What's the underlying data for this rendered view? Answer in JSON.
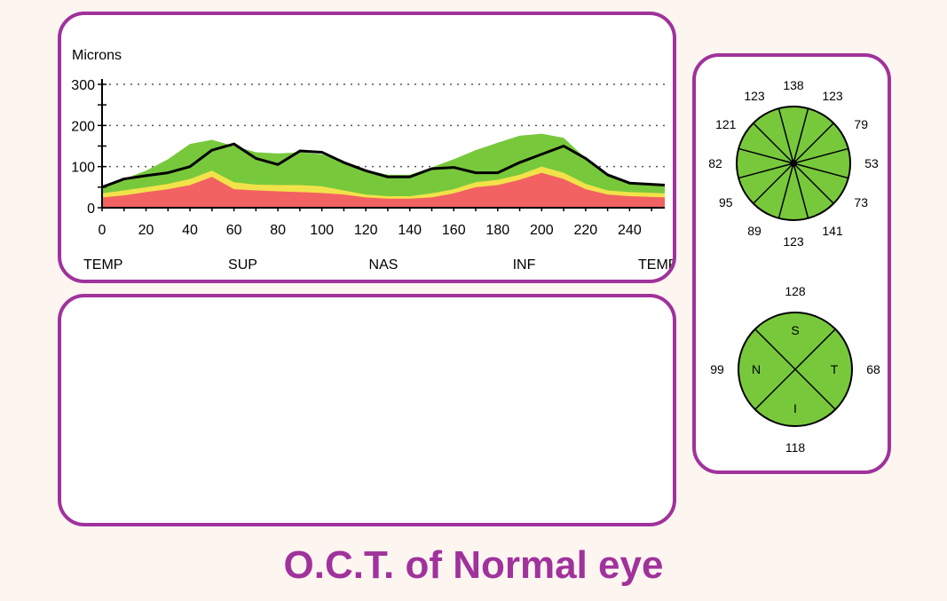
{
  "caption": "O.C.T. of Normal eye",
  "chart_data": [
    {
      "type": "area",
      "ylabel": "Microns",
      "ylim": [
        0,
        300
      ],
      "xlim": [
        0,
        256
      ],
      "yticks": [
        0,
        100,
        200,
        300
      ],
      "xticks": [
        0,
        20,
        40,
        60,
        80,
        100,
        120,
        140,
        160,
        180,
        200,
        220,
        240
      ],
      "region_labels": [
        {
          "label": "TEMP",
          "x": 0
        },
        {
          "label": "SUP",
          "x": 64
        },
        {
          "label": "NAS",
          "x": 128
        },
        {
          "label": "INF",
          "x": 192
        },
        {
          "label": "TEMP",
          "x": 256
        }
      ],
      "grid": "dotted-horizontal",
      "colors": {
        "red": "#f26262",
        "yellow": "#f2e24a",
        "green": "#78c83c",
        "line": "#000000"
      },
      "x": [
        0,
        10,
        20,
        30,
        40,
        50,
        60,
        70,
        80,
        90,
        100,
        110,
        120,
        130,
        140,
        150,
        160,
        170,
        180,
        190,
        200,
        210,
        220,
        230,
        240,
        256
      ],
      "bands": [
        {
          "color": "red",
          "values": [
            25,
            30,
            38,
            45,
            55,
            75,
            45,
            42,
            40,
            38,
            36,
            32,
            25,
            22,
            22,
            25,
            35,
            50,
            55,
            68,
            85,
            70,
            45,
            32,
            28,
            25
          ]
        },
        {
          "color": "yellow",
          "values": [
            35,
            42,
            50,
            58,
            70,
            90,
            62,
            56,
            55,
            55,
            52,
            42,
            32,
            28,
            28,
            35,
            45,
            62,
            68,
            80,
            100,
            85,
            58,
            42,
            38,
            35
          ]
        },
        {
          "color": "green",
          "values": [
            50,
            70,
            90,
            118,
            155,
            165,
            150,
            135,
            132,
            135,
            130,
            112,
            92,
            80,
            80,
            98,
            118,
            140,
            158,
            175,
            180,
            170,
            120,
            78,
            60,
            52
          ]
        }
      ],
      "series": [
        {
          "values": [
            50,
            70,
            78,
            85,
            100,
            140,
            155,
            120,
            105,
            138,
            135,
            110,
            90,
            75,
            75,
            95,
            98,
            85,
            85,
            110,
            130,
            150,
            120,
            80,
            60,
            55
          ]
        }
      ]
    },
    {
      "type": "pie",
      "segments": [
        "clock-hours"
      ],
      "values": [
        138,
        123,
        79,
        53,
        73,
        141,
        123,
        89,
        95,
        82,
        121,
        123
      ],
      "color": "#78c83c"
    },
    {
      "type": "pie",
      "segments": [
        "S",
        "T",
        "I",
        "N"
      ],
      "values": [
        128,
        68,
        118,
        99
      ],
      "color": "#78c83c"
    }
  ]
}
